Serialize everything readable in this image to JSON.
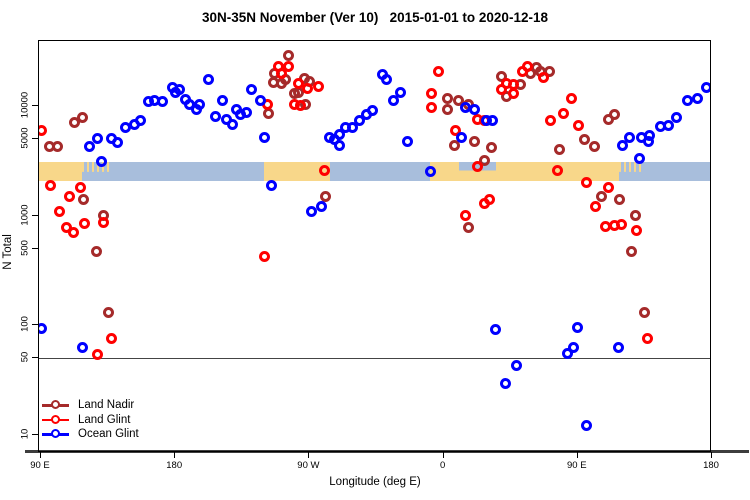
{
  "title": "30N-35N November (Ver 10)   2015-01-01 to 2020-12-18",
  "legend": {
    "items": [
      {
        "label": "Land Nadir",
        "color": "#A52A2A"
      },
      {
        "label": "Land Glint",
        "color": "#FF0000"
      },
      {
        "label": "Ocean Glint",
        "color": "#0000FF"
      }
    ]
  },
  "chart_data": {
    "type": "scatter",
    "title": "30N-35N November (Ver 10)   2015-01-01 to 2020-12-18",
    "xlabel": "Longitude (deg E)",
    "ylabel": "N Total",
    "x_axis": {
      "title": "Longitude (deg E)",
      "note": "longitude unwrapped eastward from 90E; values >360 repeat 0-180E",
      "range": [
        88.66,
        540
      ],
      "ticks": [
        {
          "u": 90,
          "label": "90 E"
        },
        {
          "u": 180,
          "label": "180"
        },
        {
          "u": 270,
          "label": "90 W"
        },
        {
          "u": 360,
          "label": "0"
        },
        {
          "u": 450,
          "label": "90 E"
        },
        {
          "u": 540,
          "label": "180"
        }
      ]
    },
    "y_axis": {
      "title": "N Total",
      "scale": "log",
      "range": [
        6.8,
        39200
      ],
      "ticks": [
        {
          "v": 10,
          "label": "10"
        },
        {
          "v": 50,
          "label": "50"
        },
        {
          "v": 100,
          "label": "100"
        },
        {
          "v": 500,
          "label": "500"
        },
        {
          "v": 1000,
          "label": "1000"
        },
        {
          "v": 5000,
          "label": "5000"
        },
        {
          "v": 10000,
          "label": "10000"
        }
      ]
    },
    "reference_line_v": 50,
    "map_band": {
      "v_top": 3100,
      "v_bottom": 2070,
      "ocean_color": "#A8BEDC",
      "land_color": "#F8D78A",
      "segments": [
        {
          "from": 88.7,
          "to": 117.5,
          "type": "land"
        },
        {
          "from": 117.5,
          "to": 137,
          "type": "land_speckle_over_ocean"
        },
        {
          "from": 137,
          "to": 239.6,
          "type": "ocean"
        },
        {
          "from": 239.6,
          "to": 283.8,
          "type": "land"
        },
        {
          "from": 283.8,
          "to": 350.9,
          "type": "ocean"
        },
        {
          "from": 350.9,
          "to": 370.3,
          "type": "land"
        },
        {
          "from": 370.3,
          "to": 395.2,
          "type": "ocean_over_land"
        },
        {
          "from": 395.2,
          "to": 477.6,
          "type": "land"
        },
        {
          "from": 477.6,
          "to": 493,
          "type": "land_speckle_over_ocean"
        },
        {
          "from": 493,
          "to": 540,
          "type": "ocean"
        }
      ]
    },
    "series": [
      {
        "name": "Land Nadir",
        "slug": "land-nadir",
        "color": "#A52A2A",
        "points": [
          [
            112.8,
            7100
          ],
          [
            117.5,
            7900
          ],
          [
            96,
            4300
          ],
          [
            101.4,
            4300
          ],
          [
            118.8,
            1400
          ],
          [
            131.6,
            1000
          ],
          [
            126.9,
            470
          ],
          [
            135.6,
            130
          ],
          [
            255.7,
            29000
          ],
          [
            246.3,
            19700
          ],
          [
            254.3,
            17400
          ],
          [
            245.6,
            16400
          ],
          [
            251.6,
            16000
          ],
          [
            266.4,
            17700
          ],
          [
            270.4,
            16700
          ],
          [
            259.7,
            13100
          ],
          [
            262.4,
            13400
          ],
          [
            267.7,
            10400
          ],
          [
            242.9,
            8600
          ],
          [
            281.1,
            1500
          ],
          [
            362.3,
            11700
          ],
          [
            362.3,
            9300
          ],
          [
            370.3,
            11300
          ],
          [
            376.4,
            10400
          ],
          [
            367,
            4400
          ],
          [
            380.4,
            4700
          ],
          [
            387.7,
            3200
          ],
          [
            376.4,
            770
          ],
          [
            391.8,
            4200
          ],
          [
            422,
            22600
          ],
          [
            418,
            19700
          ],
          [
            425.3,
            20500
          ],
          [
            431.3,
            20500
          ],
          [
            398.5,
            18500
          ],
          [
            411.9,
            15700
          ],
          [
            402.5,
            12300
          ],
          [
            437.4,
            4000
          ],
          [
            454.8,
            4900
          ],
          [
            460.9,
            4300
          ],
          [
            466.2,
            1500
          ],
          [
            470.9,
            7600
          ],
          [
            474.9,
            8400
          ],
          [
            478.3,
            1400
          ],
          [
            489,
            1000
          ],
          [
            486.3,
            470
          ],
          [
            495,
            130
          ]
        ]
      },
      {
        "name": "Land Glint",
        "slug": "land-glint",
        "color": "#FF0000",
        "points": [
          [
            90,
            6000
          ],
          [
            96.7,
            1900
          ],
          [
            116.2,
            1800
          ],
          [
            108.8,
            1500
          ],
          [
            102.1,
            1100
          ],
          [
            106.8,
            770
          ],
          [
            112.1,
            700
          ],
          [
            119.5,
            840
          ],
          [
            131.6,
            860
          ],
          [
            137,
            76
          ],
          [
            127.6,
            54
          ],
          [
            239.6,
            420
          ],
          [
            249.6,
            22700
          ],
          [
            256.3,
            23100
          ],
          [
            251,
            19700
          ],
          [
            262.4,
            16000
          ],
          [
            268.4,
            14500
          ],
          [
            275.8,
            15000
          ],
          [
            259.7,
            10400
          ],
          [
            263.7,
            10000
          ],
          [
            241.6,
            10400
          ],
          [
            279.8,
            2600
          ],
          [
            356.3,
            20500
          ],
          [
            352.2,
            12900
          ],
          [
            352.2,
            9600
          ],
          [
            383,
            7600
          ],
          [
            387.7,
            7400
          ],
          [
            368.3,
            6000
          ],
          [
            382.4,
            2800
          ],
          [
            375,
            1000
          ],
          [
            387.7,
            1300
          ],
          [
            391,
            1400
          ],
          [
            416.6,
            23100
          ],
          [
            412.6,
            20500
          ],
          [
            427.3,
            18100
          ],
          [
            402.5,
            16000
          ],
          [
            407.2,
            15700
          ],
          [
            398.5,
            14000
          ],
          [
            407.2,
            13100
          ],
          [
            432,
            7300
          ],
          [
            440.7,
            8600
          ],
          [
            446,
            11700
          ],
          [
            450.7,
            6600
          ],
          [
            436.7,
            2600
          ],
          [
            456.1,
            2000
          ],
          [
            462.2,
            1200
          ],
          [
            470.9,
            1800
          ],
          [
            468.9,
            800
          ],
          [
            474.3,
            810
          ],
          [
            479.6,
            820
          ],
          [
            489.7,
            730
          ],
          [
            497,
            76
          ]
        ]
      },
      {
        "name": "Ocean Glint",
        "slug": "ocean-glint",
        "color": "#0000FF",
        "points": [
          [
            162.4,
            11100
          ],
          [
            147,
            6300
          ],
          [
            152.4,
            6800
          ],
          [
            156.4,
            7400
          ],
          [
            122.2,
            4300
          ],
          [
            127.6,
            5100
          ],
          [
            137,
            5100
          ],
          [
            141.6,
            4600
          ],
          [
            130.9,
            3100
          ],
          [
            90,
            94
          ],
          [
            117.5,
            63
          ],
          [
            165.8,
            11300
          ],
          [
            171.8,
            10900
          ],
          [
            177.9,
            14900
          ],
          [
            180.5,
            13200
          ],
          [
            183.2,
            14000
          ],
          [
            186.6,
            11500
          ],
          [
            189.3,
            10400
          ],
          [
            194,
            9200
          ],
          [
            196.6,
            10400
          ],
          [
            202,
            17300
          ],
          [
            206.7,
            8100
          ],
          [
            211.4,
            11300
          ],
          [
            214.7,
            7600
          ],
          [
            218.1,
            6800
          ],
          [
            221.4,
            9200
          ],
          [
            224.1,
            8400
          ],
          [
            227.5,
            8700
          ],
          [
            231.5,
            14000
          ],
          [
            237.5,
            11300
          ],
          [
            240.2,
            5200
          ],
          [
            312,
            9100
          ],
          [
            308,
            8400
          ],
          [
            303.9,
            7300
          ],
          [
            298.6,
            6400
          ],
          [
            293.9,
            6300
          ],
          [
            289.9,
            5500
          ],
          [
            283.8,
            5200
          ],
          [
            286.5,
            4900
          ],
          [
            290.5,
            4400
          ],
          [
            244.9,
            1900
          ],
          [
            278.4,
            1200
          ],
          [
            271.7,
            1100
          ],
          [
            318.7,
            19200
          ],
          [
            322,
            17300
          ],
          [
            331.4,
            13400
          ],
          [
            326.7,
            11300
          ],
          [
            375,
            9600
          ],
          [
            380.4,
            9200
          ],
          [
            389.1,
            7300
          ],
          [
            393.1,
            7400
          ],
          [
            372.3,
            5200
          ],
          [
            336.1,
            4700
          ],
          [
            350.9,
            2500
          ],
          [
            394.5,
            92
          ],
          [
            450,
            95
          ],
          [
            442.8,
            55
          ],
          [
            446.8,
            63
          ],
          [
            408.6,
            43
          ],
          [
            401.8,
            29
          ],
          [
            456.1,
            12
          ],
          [
            536.6,
            14900
          ],
          [
            530.6,
            11700
          ],
          [
            523.9,
            11300
          ],
          [
            515.9,
            7800
          ],
          [
            510.5,
            6600
          ],
          [
            505.2,
            6500
          ],
          [
            498.4,
            5400
          ],
          [
            497.7,
            4700
          ],
          [
            493,
            5200
          ],
          [
            485,
            5200
          ],
          [
            480.3,
            4400
          ],
          [
            491.7,
            3300
          ],
          [
            477.6,
            63
          ]
        ]
      }
    ]
  }
}
